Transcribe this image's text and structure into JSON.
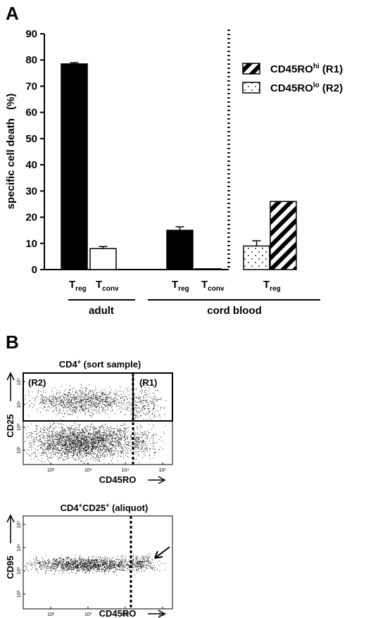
{
  "panel_a": {
    "letter": "A",
    "ylabel": "specific cell death",
    "ylabel_unit": "(%)",
    "legend": [
      {
        "main": "CD45RO",
        "sup": "hi",
        "tail": " (R1)",
        "pattern": "hatch"
      },
      {
        "main": "CD45RO",
        "sup": "lo",
        "tail": " (R2)",
        "pattern": "dots"
      }
    ],
    "bar_labels": [
      {
        "main": "T",
        "sub": "reg"
      },
      {
        "main": "T",
        "sub": "conv"
      },
      {
        "main": "T",
        "sub": "reg"
      },
      {
        "main": "T",
        "sub": "conv"
      },
      {
        "main": "T",
        "sub": "reg"
      }
    ],
    "group_labels": [
      "adult",
      "cord blood"
    ]
  },
  "panel_b": {
    "letter": "B",
    "plot1": {
      "title_main": "CD4",
      "title_sup": "+",
      "title_tail": " (sort sample)",
      "ylabel": "CD25",
      "xlabel": "CD45RO",
      "gate_left": "(R2)",
      "gate_right": "(R1)"
    },
    "plot2": {
      "title_main": "CD4",
      "title_sup1": "+",
      "title_mid": "CD25",
      "title_sup2": "+",
      "title_tail": " (aliquot)",
      "ylabel": "CD95",
      "xlabel": "CD45RO"
    },
    "tick_labels": [
      "10²",
      "10³",
      "10⁴",
      "10⁵"
    ]
  },
  "chart_data": [
    {
      "type": "bar",
      "categories": [
        "adult Treg",
        "adult Tconv",
        "cord blood Treg",
        "cord blood Tconv",
        "cord blood Treg CD45ROlo (R2)",
        "cord blood Treg CD45ROhi (R1)"
      ],
      "values": [
        78.5,
        8,
        15,
        0.3,
        9,
        26
      ],
      "errors": [
        0.5,
        0.8,
        1.3,
        0,
        2,
        0
      ],
      "fills": [
        "solid",
        "white",
        "solid",
        "white",
        "dots",
        "hatch"
      ],
      "ylabel": "specific cell death (%)",
      "ylim": [
        0,
        90
      ],
      "yticks": [
        0,
        10,
        20,
        30,
        40,
        50,
        60,
        70,
        80,
        90
      ],
      "legend_position": "top-right",
      "grid": false
    },
    {
      "type": "scatter",
      "xlabel": "CD45RO",
      "ylabel": "CD25",
      "xscale": "log",
      "yscale": "log",
      "xlim": [
        10,
        100000
      ],
      "ylim": [
        10,
        100000
      ],
      "xticks": [
        100,
        1000,
        10000,
        100000
      ],
      "yticks": [
        100,
        1000,
        10000,
        100000
      ],
      "gate_divider_x": 20000,
      "gates": [
        "(R2)",
        "(R1)"
      ]
    },
    {
      "type": "scatter",
      "xlabel": "CD45RO",
      "ylabel": "CD95",
      "xscale": "log",
      "yscale": "log",
      "xlim": [
        10,
        100000
      ],
      "ylim": [
        10,
        100000
      ],
      "xticks": [
        100,
        1000,
        10000,
        100000
      ],
      "yticks": [
        100,
        1000,
        10000,
        100000
      ],
      "gate_divider_x": 20000
    }
  ]
}
